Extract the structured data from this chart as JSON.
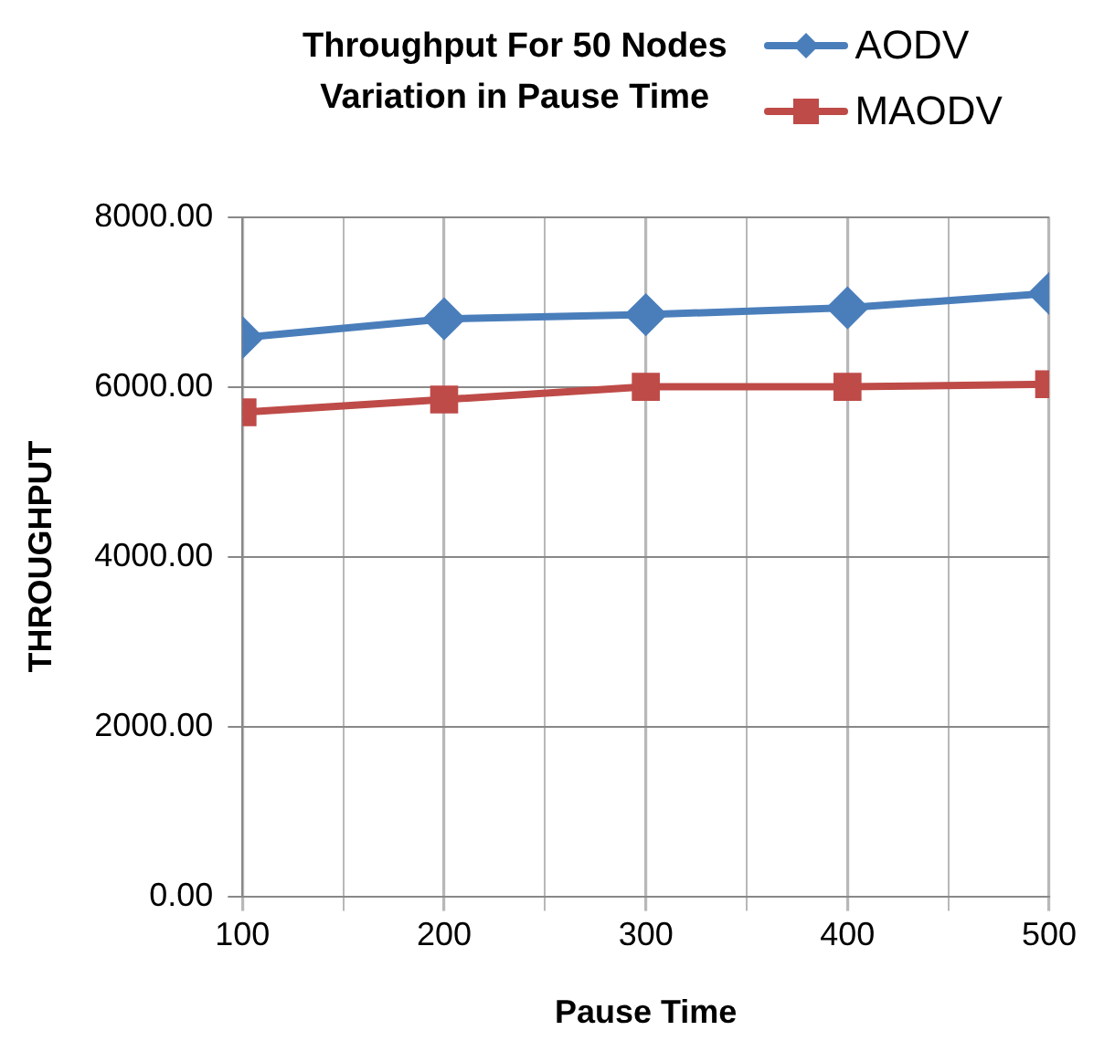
{
  "chart_data": {
    "type": "line",
    "title": "Throughput For 50 Nodes\nVariation in Pause Time",
    "xlabel": "Pause Time",
    "ylabel": "THROUGHPUT",
    "x": [
      100,
      200,
      300,
      400,
      500
    ],
    "series": [
      {
        "name": "AODV",
        "color": "#4a7ebb",
        "marker": "diamond",
        "values": [
          6580,
          6800,
          6850,
          6930,
          7100
        ]
      },
      {
        "name": "MAODV",
        "color": "#be4b48",
        "marker": "square",
        "values": [
          5700,
          5850,
          6000,
          6000,
          6030
        ]
      }
    ],
    "xlim": [
      100,
      500
    ],
    "xticks": [
      100,
      {
        "value": 150,
        "label": null
      },
      200,
      {
        "value": 250,
        "label": null
      },
      300,
      {
        "value": 350,
        "label": null
      },
      400,
      {
        "value": 450,
        "label": null
      },
      500
    ],
    "ylim": [
      0,
      8000
    ],
    "yticks": [
      {
        "value": 0,
        "label": "0.00"
      },
      {
        "value": 2000,
        "label": "2000.00"
      },
      {
        "value": 4000,
        "label": "4000.00"
      },
      {
        "value": 6000,
        "label": "6000.00"
      },
      {
        "value": 8000,
        "label": "8000.00"
      }
    ],
    "grid": true,
    "legend": "top right",
    "line_style": "solid"
  }
}
